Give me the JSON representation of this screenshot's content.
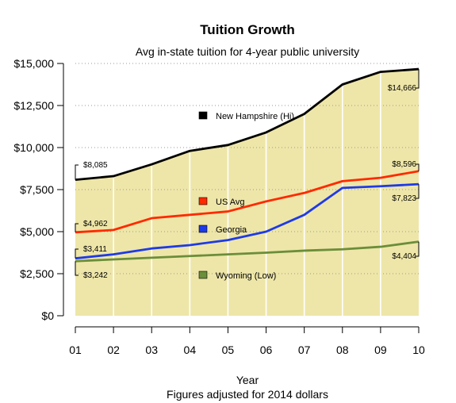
{
  "chart_data": {
    "type": "area",
    "title": "Tuition Growth",
    "subtitle": "Avg in-state tuition for 4-year public university",
    "xlabel": "Year",
    "note": "Figures adjusted for 2014 dollars",
    "x": [
      "01",
      "02",
      "03",
      "04",
      "05",
      "06",
      "07",
      "08",
      "09",
      "10"
    ],
    "yticks": [
      "$0",
      "$2,500",
      "$5,000",
      "$7,500",
      "$10,000",
      "$12,500",
      "$15,000"
    ],
    "ylim": [
      0,
      15000
    ],
    "grid": "horizontal dotted",
    "fill_color": "#EEE6A8",
    "series": [
      {
        "name": "New Hampshire (Hi)",
        "color": "#000000",
        "values": [
          8085,
          8300,
          9000,
          9800,
          10150,
          10900,
          12000,
          13750,
          14500,
          14666
        ]
      },
      {
        "name": "US Avg",
        "color": "#FF2A00",
        "values": [
          4962,
          5100,
          5800,
          6000,
          6200,
          6800,
          7300,
          8000,
          8200,
          8596
        ]
      },
      {
        "name": "Georgia",
        "color": "#1E3AE8",
        "values": [
          3411,
          3650,
          4000,
          4200,
          4500,
          5000,
          6000,
          7600,
          7700,
          7823
        ]
      },
      {
        "name": "Wyoming (Low)",
        "color": "#6B8E3A",
        "values": [
          3242,
          3350,
          3450,
          3550,
          3650,
          3750,
          3870,
          3950,
          4100,
          4404
        ]
      }
    ],
    "annotations": {
      "start": [
        "$8,085",
        "$4,962",
        "$3,411",
        "$3,242"
      ],
      "end": [
        "$14,666",
        "$8,596",
        "$7,823",
        "$4,404"
      ]
    }
  }
}
